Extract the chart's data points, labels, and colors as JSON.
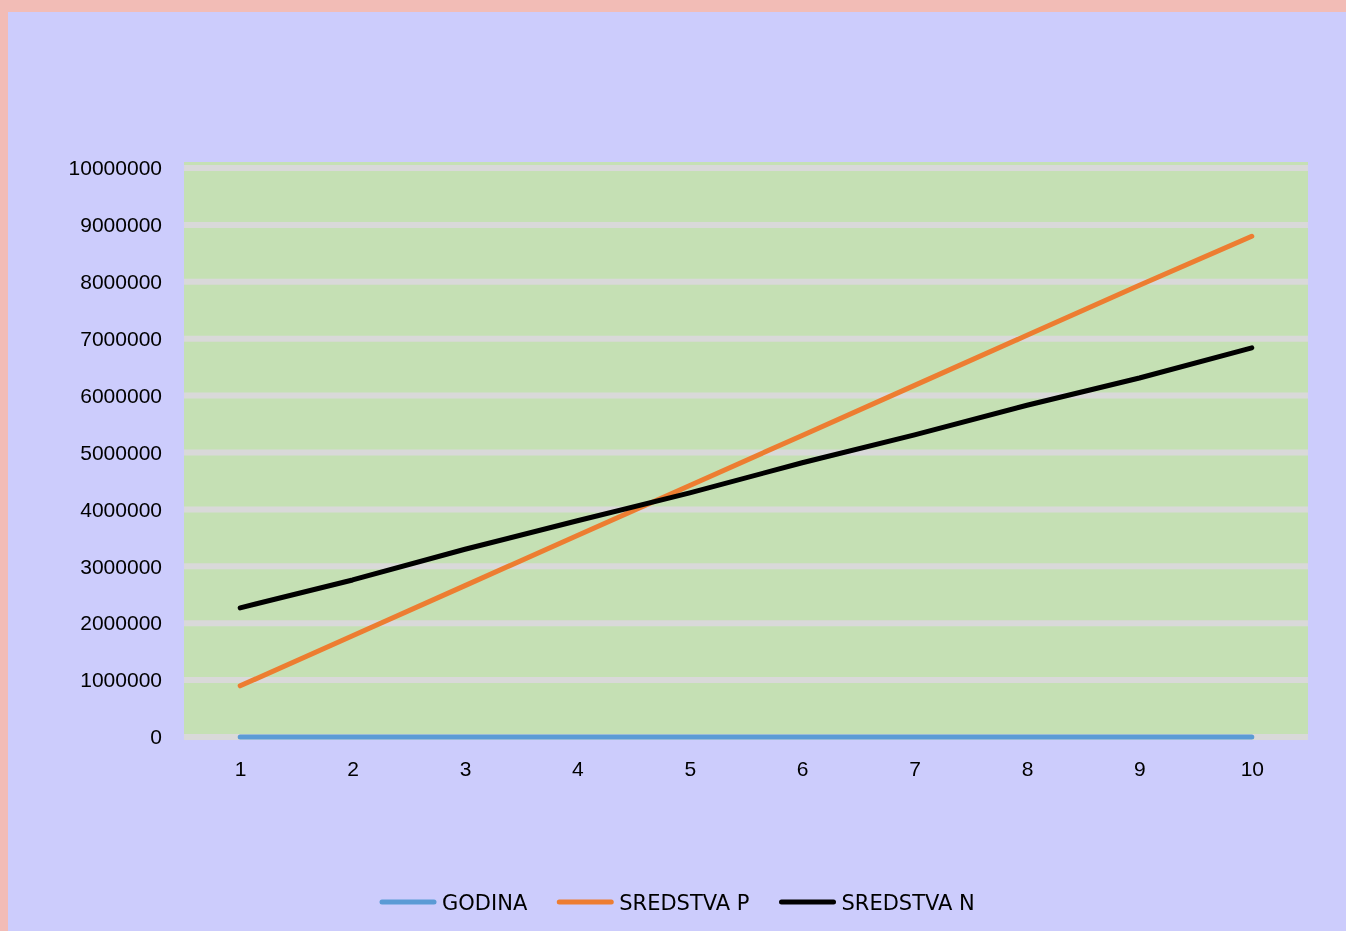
{
  "chart_data": {
    "type": "line",
    "categories": [
      "1",
      "2",
      "3",
      "4",
      "5",
      "6",
      "7",
      "8",
      "9",
      "10"
    ],
    "series": [
      {
        "name": "GODINA",
        "color": "#5b9bd5",
        "values": [
          0,
          0,
          0,
          0,
          0,
          0,
          0,
          0,
          0,
          0
        ]
      },
      {
        "name": "SREDSTVA P",
        "color": "#ed7d31",
        "values": [
          900000,
          1780000,
          2660000,
          3540000,
          4420000,
          5300000,
          6180000,
          7060000,
          7940000,
          8800000
        ]
      },
      {
        "name": "SREDSTVA N",
        "color": "#000000",
        "values": [
          2270000,
          2760000,
          3300000,
          3800000,
          4290000,
          4820000,
          5310000,
          5830000,
          6310000,
          6840000
        ]
      }
    ],
    "ylim": [
      0,
      10000000
    ],
    "yticks": [
      0,
      1000000,
      2000000,
      3000000,
      4000000,
      5000000,
      6000000,
      7000000,
      8000000,
      9000000,
      10000000
    ],
    "grid": "y",
    "legend": "bottom",
    "marker": "none",
    "line_style": "solid"
  }
}
